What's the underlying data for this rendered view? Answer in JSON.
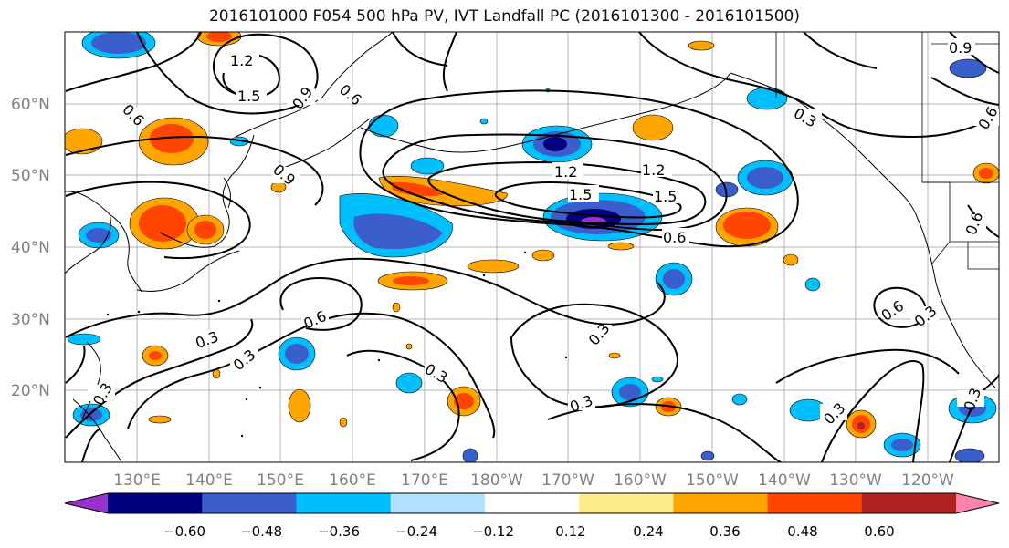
{
  "title": "2016101000 F054 500 hPa PV, IVT Landfall PC (2016101300 - 2016101500)",
  "lat_labels": [
    "60°N",
    "50°N",
    "40°N",
    "30°N",
    "20°N"
  ],
  "lon_labels": [
    "130°E",
    "140°E",
    "150°E",
    "160°E",
    "170°E",
    "180°W",
    "170°W",
    "160°W",
    "150°W",
    "140°W",
    "130°W",
    "120°W"
  ],
  "contour_labels": [
    "1.2",
    "1.5",
    "0.9",
    "0.6",
    "0.6",
    "0.9",
    "0.3",
    "1.2",
    "1.2",
    "1.5",
    "1.5",
    "0.6",
    "0.6",
    "0.3",
    "0.3",
    "0.3",
    "0.3",
    "0.3",
    "0.3",
    "0.6",
    "0.3",
    "0.3",
    "0.3",
    "0.9",
    "0.6",
    "0.6"
  ],
  "colorbar": {
    "colors": [
      "#9932cc",
      "#000080",
      "#3a5fcd",
      "#00bfff",
      "#b0e2ff",
      "#ffffff",
      "#ffec8b",
      "#ffa500",
      "#ff4500",
      "#b22222",
      "#ff82ab"
    ],
    "tick_labels": [
      "−0.60",
      "−0.48",
      "−0.36",
      "−0.24",
      "−0.12",
      "0.12",
      "0.24",
      "0.36",
      "0.48",
      "0.60"
    ]
  }
}
